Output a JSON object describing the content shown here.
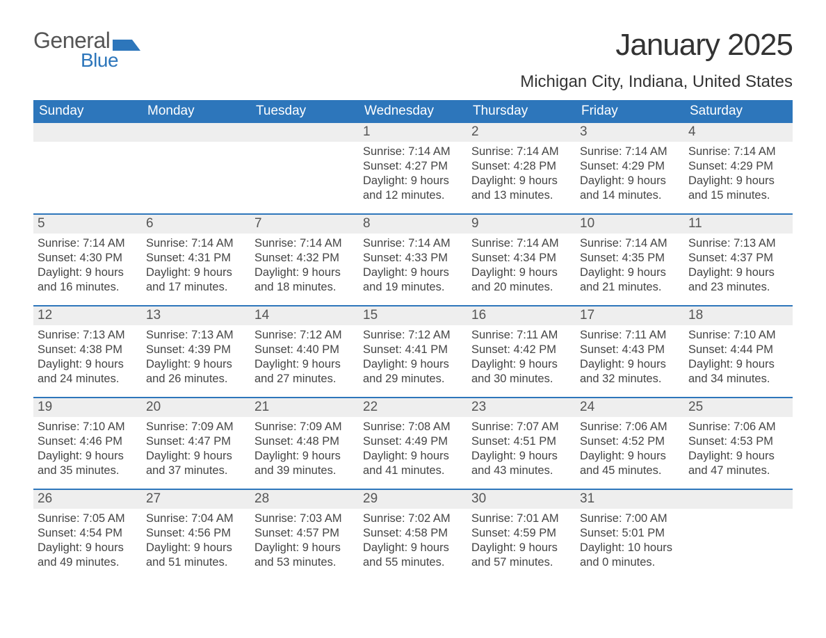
{
  "logo": {
    "text_general": "General",
    "text_blue": "Blue",
    "flag_color": "#2d76bb"
  },
  "month_title": "January 2025",
  "location": "Michigan City, Indiana, United States",
  "colors": {
    "header_bg": "#2d76bb",
    "header_text": "#ffffff",
    "daynum_bg": "#eeeeee",
    "text": "#444444",
    "week_border": "#2d76bb"
  },
  "typography": {
    "month_title_fontsize": 44,
    "location_fontsize": 24,
    "header_fontsize": 19,
    "daynum_fontsize": 19,
    "body_fontsize": 16.5
  },
  "day_headers": [
    "Sunday",
    "Monday",
    "Tuesday",
    "Wednesday",
    "Thursday",
    "Friday",
    "Saturday"
  ],
  "weeks": [
    [
      {
        "day": "",
        "sunrise": "",
        "sunset": "",
        "daylight1": "",
        "daylight2": ""
      },
      {
        "day": "",
        "sunrise": "",
        "sunset": "",
        "daylight1": "",
        "daylight2": ""
      },
      {
        "day": "",
        "sunrise": "",
        "sunset": "",
        "daylight1": "",
        "daylight2": ""
      },
      {
        "day": "1",
        "sunrise": "Sunrise: 7:14 AM",
        "sunset": "Sunset: 4:27 PM",
        "daylight1": "Daylight: 9 hours",
        "daylight2": "and 12 minutes."
      },
      {
        "day": "2",
        "sunrise": "Sunrise: 7:14 AM",
        "sunset": "Sunset: 4:28 PM",
        "daylight1": "Daylight: 9 hours",
        "daylight2": "and 13 minutes."
      },
      {
        "day": "3",
        "sunrise": "Sunrise: 7:14 AM",
        "sunset": "Sunset: 4:29 PM",
        "daylight1": "Daylight: 9 hours",
        "daylight2": "and 14 minutes."
      },
      {
        "day": "4",
        "sunrise": "Sunrise: 7:14 AM",
        "sunset": "Sunset: 4:29 PM",
        "daylight1": "Daylight: 9 hours",
        "daylight2": "and 15 minutes."
      }
    ],
    [
      {
        "day": "5",
        "sunrise": "Sunrise: 7:14 AM",
        "sunset": "Sunset: 4:30 PM",
        "daylight1": "Daylight: 9 hours",
        "daylight2": "and 16 minutes."
      },
      {
        "day": "6",
        "sunrise": "Sunrise: 7:14 AM",
        "sunset": "Sunset: 4:31 PM",
        "daylight1": "Daylight: 9 hours",
        "daylight2": "and 17 minutes."
      },
      {
        "day": "7",
        "sunrise": "Sunrise: 7:14 AM",
        "sunset": "Sunset: 4:32 PM",
        "daylight1": "Daylight: 9 hours",
        "daylight2": "and 18 minutes."
      },
      {
        "day": "8",
        "sunrise": "Sunrise: 7:14 AM",
        "sunset": "Sunset: 4:33 PM",
        "daylight1": "Daylight: 9 hours",
        "daylight2": "and 19 minutes."
      },
      {
        "day": "9",
        "sunrise": "Sunrise: 7:14 AM",
        "sunset": "Sunset: 4:34 PM",
        "daylight1": "Daylight: 9 hours",
        "daylight2": "and 20 minutes."
      },
      {
        "day": "10",
        "sunrise": "Sunrise: 7:14 AM",
        "sunset": "Sunset: 4:35 PM",
        "daylight1": "Daylight: 9 hours",
        "daylight2": "and 21 minutes."
      },
      {
        "day": "11",
        "sunrise": "Sunrise: 7:13 AM",
        "sunset": "Sunset: 4:37 PM",
        "daylight1": "Daylight: 9 hours",
        "daylight2": "and 23 minutes."
      }
    ],
    [
      {
        "day": "12",
        "sunrise": "Sunrise: 7:13 AM",
        "sunset": "Sunset: 4:38 PM",
        "daylight1": "Daylight: 9 hours",
        "daylight2": "and 24 minutes."
      },
      {
        "day": "13",
        "sunrise": "Sunrise: 7:13 AM",
        "sunset": "Sunset: 4:39 PM",
        "daylight1": "Daylight: 9 hours",
        "daylight2": "and 26 minutes."
      },
      {
        "day": "14",
        "sunrise": "Sunrise: 7:12 AM",
        "sunset": "Sunset: 4:40 PM",
        "daylight1": "Daylight: 9 hours",
        "daylight2": "and 27 minutes."
      },
      {
        "day": "15",
        "sunrise": "Sunrise: 7:12 AM",
        "sunset": "Sunset: 4:41 PM",
        "daylight1": "Daylight: 9 hours",
        "daylight2": "and 29 minutes."
      },
      {
        "day": "16",
        "sunrise": "Sunrise: 7:11 AM",
        "sunset": "Sunset: 4:42 PM",
        "daylight1": "Daylight: 9 hours",
        "daylight2": "and 30 minutes."
      },
      {
        "day": "17",
        "sunrise": "Sunrise: 7:11 AM",
        "sunset": "Sunset: 4:43 PM",
        "daylight1": "Daylight: 9 hours",
        "daylight2": "and 32 minutes."
      },
      {
        "day": "18",
        "sunrise": "Sunrise: 7:10 AM",
        "sunset": "Sunset: 4:44 PM",
        "daylight1": "Daylight: 9 hours",
        "daylight2": "and 34 minutes."
      }
    ],
    [
      {
        "day": "19",
        "sunrise": "Sunrise: 7:10 AM",
        "sunset": "Sunset: 4:46 PM",
        "daylight1": "Daylight: 9 hours",
        "daylight2": "and 35 minutes."
      },
      {
        "day": "20",
        "sunrise": "Sunrise: 7:09 AM",
        "sunset": "Sunset: 4:47 PM",
        "daylight1": "Daylight: 9 hours",
        "daylight2": "and 37 minutes."
      },
      {
        "day": "21",
        "sunrise": "Sunrise: 7:09 AM",
        "sunset": "Sunset: 4:48 PM",
        "daylight1": "Daylight: 9 hours",
        "daylight2": "and 39 minutes."
      },
      {
        "day": "22",
        "sunrise": "Sunrise: 7:08 AM",
        "sunset": "Sunset: 4:49 PM",
        "daylight1": "Daylight: 9 hours",
        "daylight2": "and 41 minutes."
      },
      {
        "day": "23",
        "sunrise": "Sunrise: 7:07 AM",
        "sunset": "Sunset: 4:51 PM",
        "daylight1": "Daylight: 9 hours",
        "daylight2": "and 43 minutes."
      },
      {
        "day": "24",
        "sunrise": "Sunrise: 7:06 AM",
        "sunset": "Sunset: 4:52 PM",
        "daylight1": "Daylight: 9 hours",
        "daylight2": "and 45 minutes."
      },
      {
        "day": "25",
        "sunrise": "Sunrise: 7:06 AM",
        "sunset": "Sunset: 4:53 PM",
        "daylight1": "Daylight: 9 hours",
        "daylight2": "and 47 minutes."
      }
    ],
    [
      {
        "day": "26",
        "sunrise": "Sunrise: 7:05 AM",
        "sunset": "Sunset: 4:54 PM",
        "daylight1": "Daylight: 9 hours",
        "daylight2": "and 49 minutes."
      },
      {
        "day": "27",
        "sunrise": "Sunrise: 7:04 AM",
        "sunset": "Sunset: 4:56 PM",
        "daylight1": "Daylight: 9 hours",
        "daylight2": "and 51 minutes."
      },
      {
        "day": "28",
        "sunrise": "Sunrise: 7:03 AM",
        "sunset": "Sunset: 4:57 PM",
        "daylight1": "Daylight: 9 hours",
        "daylight2": "and 53 minutes."
      },
      {
        "day": "29",
        "sunrise": "Sunrise: 7:02 AM",
        "sunset": "Sunset: 4:58 PM",
        "daylight1": "Daylight: 9 hours",
        "daylight2": "and 55 minutes."
      },
      {
        "day": "30",
        "sunrise": "Sunrise: 7:01 AM",
        "sunset": "Sunset: 4:59 PM",
        "daylight1": "Daylight: 9 hours",
        "daylight2": "and 57 minutes."
      },
      {
        "day": "31",
        "sunrise": "Sunrise: 7:00 AM",
        "sunset": "Sunset: 5:01 PM",
        "daylight1": "Daylight: 10 hours",
        "daylight2": "and 0 minutes."
      },
      {
        "day": "",
        "sunrise": "",
        "sunset": "",
        "daylight1": "",
        "daylight2": ""
      }
    ]
  ]
}
